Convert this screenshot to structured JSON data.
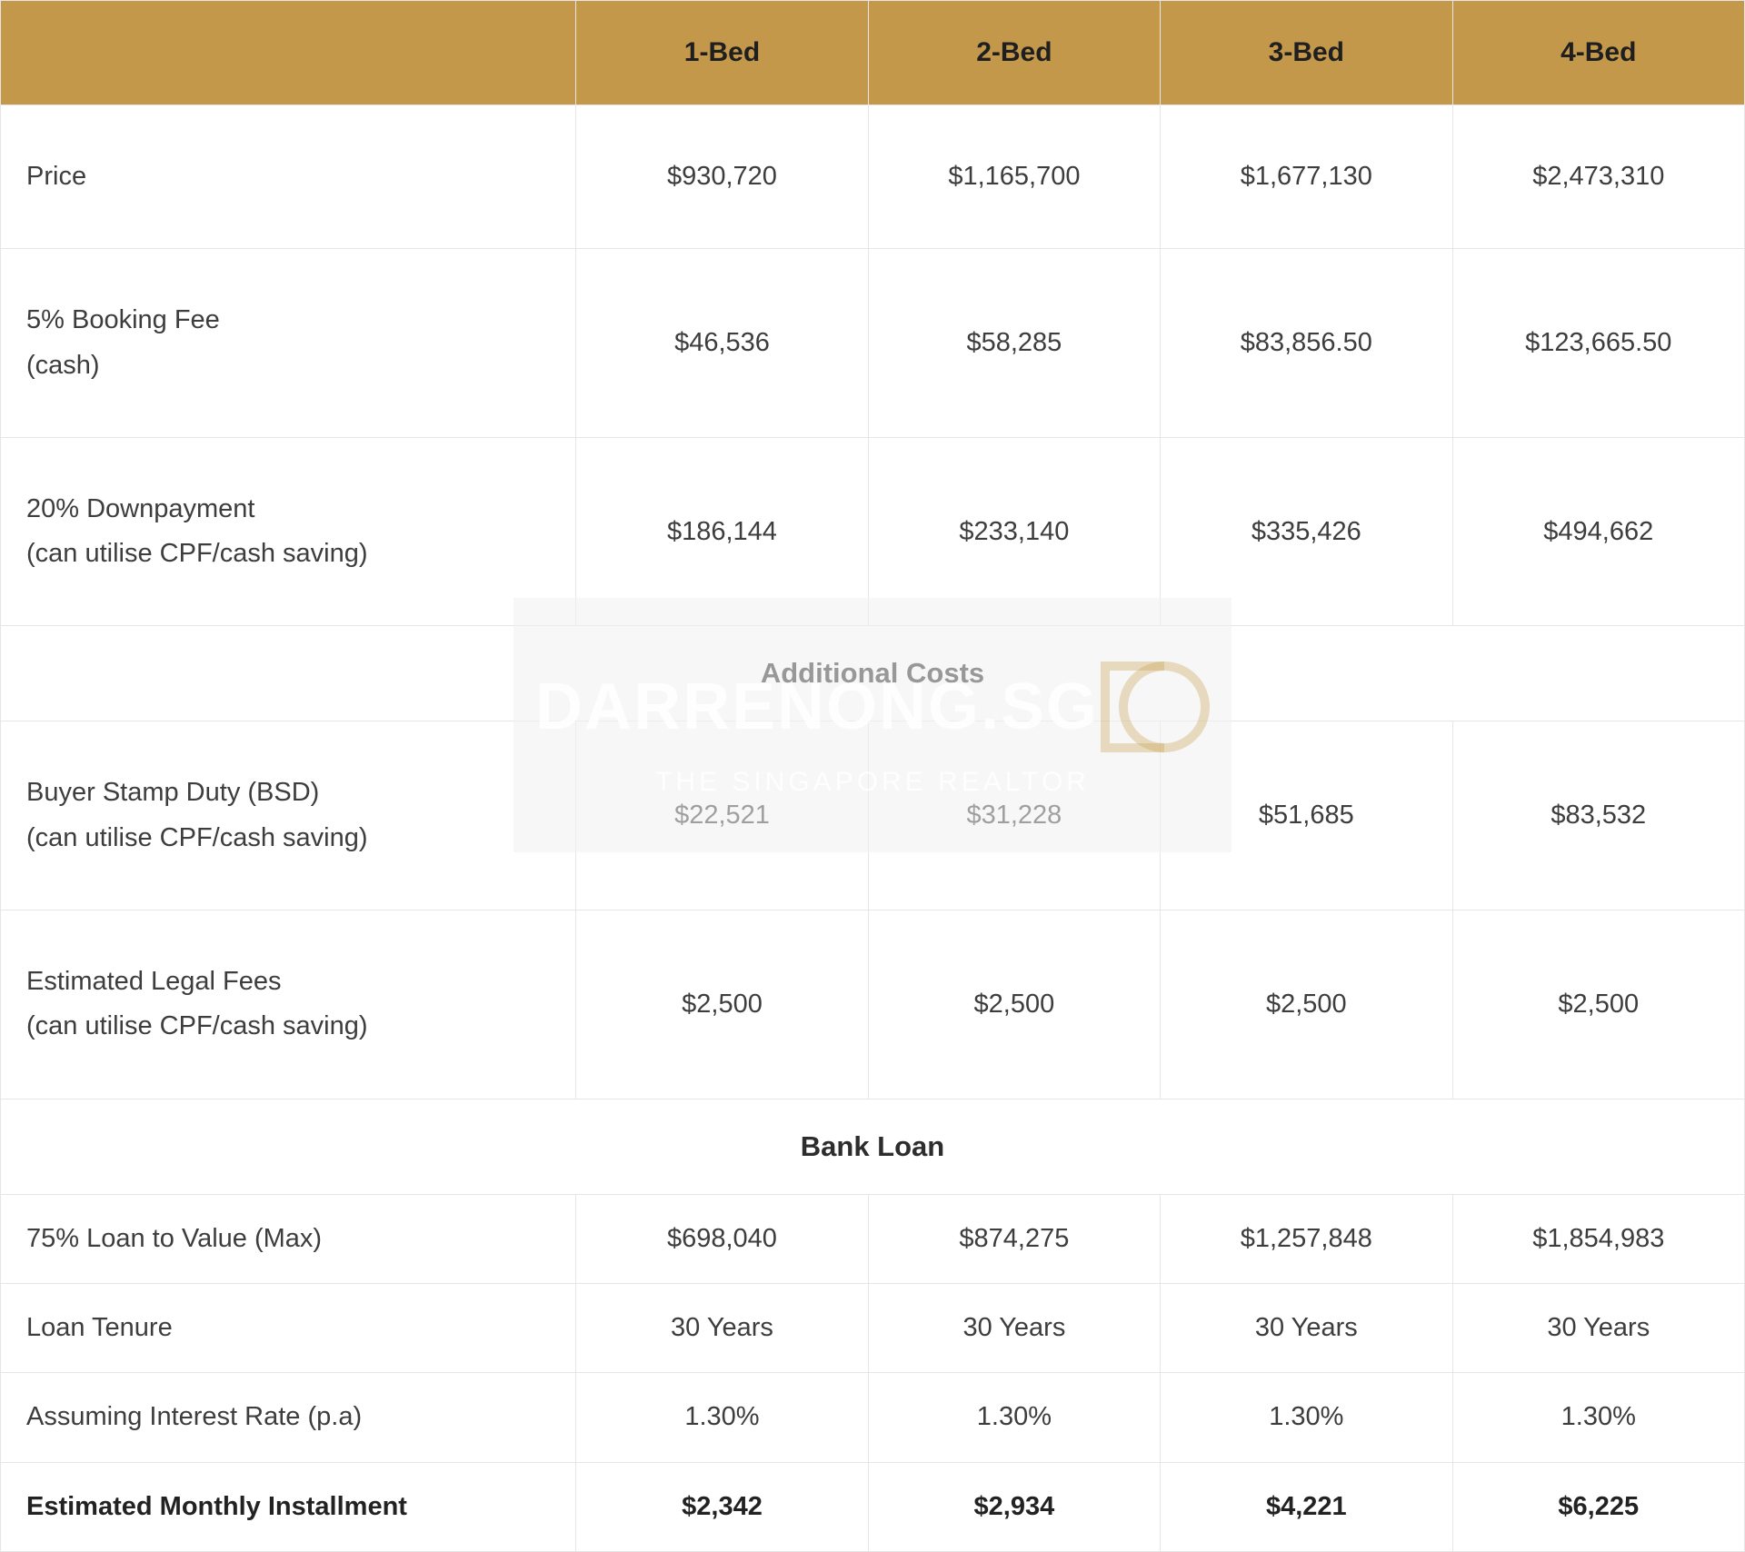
{
  "colors": {
    "header_bg": "#c3984b",
    "header_text": "#1f1f1f",
    "border": "#e6e6e6",
    "text": "#3d3d3d",
    "background": "#ffffff",
    "watermark_bg": "rgba(240,240,240,0.55)",
    "watermark_text": "rgba(255,255,255,0.85)",
    "watermark_accent": "rgba(200,160,80,0.35)"
  },
  "typography": {
    "cell_fontsize": 29,
    "header_fontsize": 30,
    "section_fontsize": 31,
    "label_lineheight": 1.7
  },
  "watermark": {
    "main": "DARRENONG.SG",
    "sub": "THE SINGAPORE REALTOR"
  },
  "headers": [
    "",
    "1-Bed",
    "2-Bed",
    "3-Bed",
    "4-Bed"
  ],
  "rows": [
    {
      "type": "data",
      "variant": "tall",
      "label": "Price",
      "values": [
        "$930,720",
        "$1,165,700",
        "$1,677,130",
        "$2,473,310"
      ]
    },
    {
      "type": "data",
      "variant": "tall",
      "label": "5% Booking Fee\n(cash)",
      "values": [
        "$46,536",
        "$58,285",
        "$83,856.50",
        "$123,665.50"
      ]
    },
    {
      "type": "data",
      "variant": "tall",
      "label": "20% Downpayment\n(can utilise CPF/cash saving)",
      "values": [
        "$186,144",
        "$233,140",
        "$335,426",
        "$494,662"
      ]
    },
    {
      "type": "section",
      "label": "Additional Costs"
    },
    {
      "type": "data",
      "variant": "tall",
      "label": "Buyer Stamp Duty (BSD)\n(can utilise CPF/cash saving)",
      "values": [
        "$22,521",
        "$31,228",
        "$51,685",
        "$83,532"
      ]
    },
    {
      "type": "data",
      "variant": "tall",
      "label": "Estimated Legal Fees\n(can utilise CPF/cash saving)",
      "values": [
        "$2,500",
        "$2,500",
        "$2,500",
        "$2,500"
      ]
    },
    {
      "type": "section",
      "label": "Bank Loan"
    },
    {
      "type": "data",
      "variant": "short",
      "label": "75% Loan to Value (Max)",
      "values": [
        "$698,040",
        "$874,275",
        "$1,257,848",
        "$1,854,983"
      ]
    },
    {
      "type": "data",
      "variant": "short",
      "label": "Loan Tenure",
      "values": [
        "30 Years",
        "30 Years",
        "30 Years",
        "30 Years"
      ]
    },
    {
      "type": "data",
      "variant": "short",
      "label": "Assuming Interest Rate (p.a)",
      "values": [
        "1.30%",
        "1.30%",
        "1.30%",
        "1.30%"
      ]
    },
    {
      "type": "data",
      "variant": "short bold",
      "label": "Estimated Monthly Installment",
      "values": [
        "$2,342",
        "$2,934",
        "$4,221",
        "$6,225"
      ]
    }
  ]
}
